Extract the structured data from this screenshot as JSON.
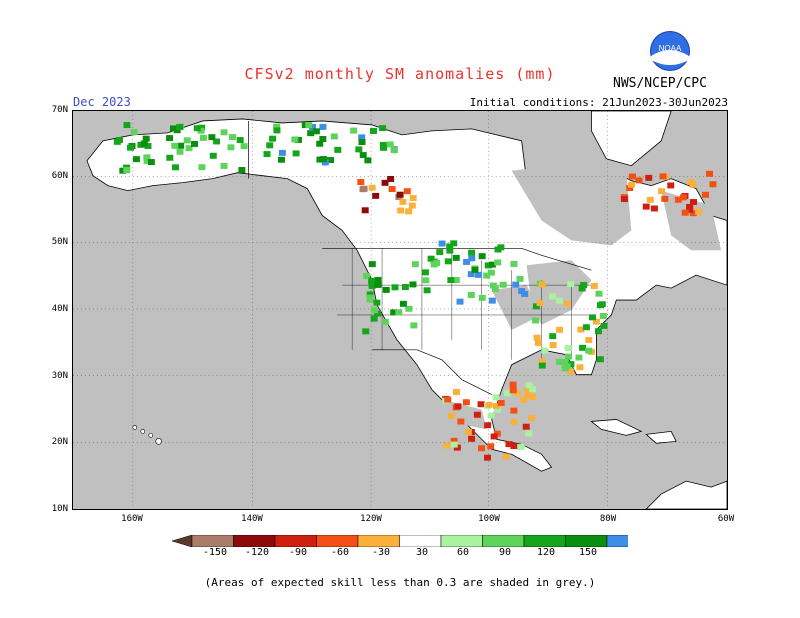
{
  "title": "CFSv2 monthly SM anomalies (mm)",
  "lead_month": "Dec 2023",
  "initial_conditions": "Initial conditions: 21Jun2023-30Jun2023",
  "agency": "NWS/NCEP/CPC",
  "logo_text": "NOAA",
  "note": "(Areas of expected skill less than 0.3 are shaded in grey.)",
  "lat_labels": [
    "70N",
    "60N",
    "50N",
    "40N",
    "30N",
    "20N",
    "10N"
  ],
  "lon_labels": [
    "160W",
    "140W",
    "120W",
    "100W",
    "80W",
    "60W"
  ],
  "colorbar": {
    "ticks": [
      "-150",
      "-120",
      "-90",
      "-60",
      "-30",
      "30",
      "60",
      "90",
      "120",
      "150"
    ],
    "colors": [
      "#5b3a2c",
      "#a97d6a",
      "#8c0a0a",
      "#cf1f10",
      "#f45016",
      "#fbb03a",
      "#ffffff",
      "#a8f2a0",
      "#5ed35a",
      "#15a51d",
      "#0a8e0e",
      "#3e8ee6",
      "#1c62d8"
    ]
  },
  "colors": {
    "land": "#ffffff",
    "ocean": "#c0c0c0",
    "low_skill": "#c0c0c0",
    "title": "#e8342c",
    "lead": "#3c4ec8"
  }
}
